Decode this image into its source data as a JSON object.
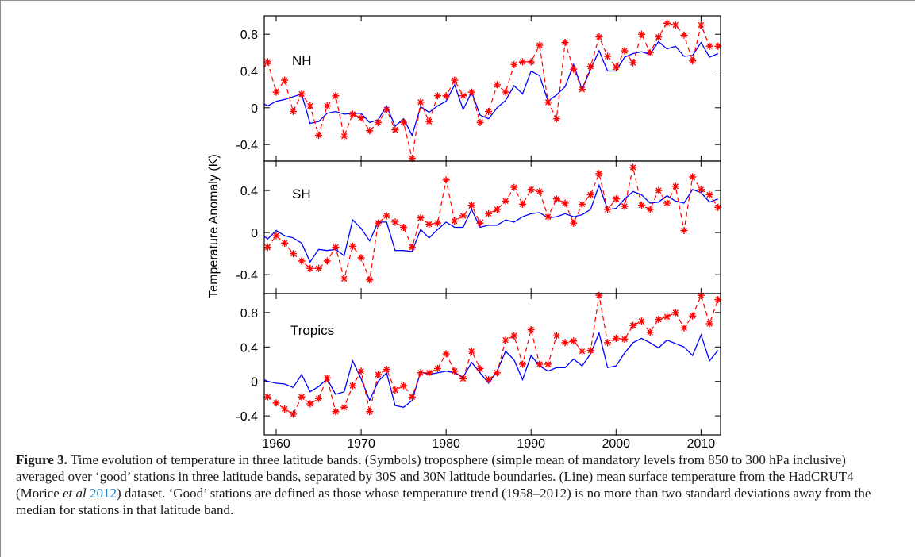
{
  "chart_data": {
    "type": "line",
    "ylabel": "Temperature Anomaly (K)",
    "xlim": [
      1958.6,
      2012.3
    ],
    "x_ticks": [
      1960,
      1970,
      1980,
      1990,
      2000,
      2010
    ],
    "x_tick_labels": [
      "1960",
      "1970",
      "1980",
      "1990",
      "2000",
      "2010"
    ],
    "panels": [
      {
        "label": "NH",
        "ylim": [
          -0.58,
          1.0
        ],
        "y_ticks": [
          -0.4,
          0,
          0.4,
          0.8
        ],
        "y_tick_labels": [
          "-0.4",
          "0",
          "0.4",
          "0.8"
        ],
        "years": [
          1958,
          1959,
          1960,
          1961,
          1962,
          1963,
          1964,
          1965,
          1966,
          1967,
          1968,
          1969,
          1970,
          1971,
          1972,
          1973,
          1974,
          1975,
          1976,
          1977,
          1978,
          1979,
          1980,
          1981,
          1982,
          1983,
          1984,
          1985,
          1986,
          1987,
          1988,
          1989,
          1990,
          1991,
          1992,
          1993,
          1994,
          1995,
          1996,
          1997,
          1998,
          1999,
          2000,
          2001,
          2002,
          2003,
          2004,
          2005,
          2006,
          2007,
          2008,
          2009,
          2010,
          2011,
          2012
        ],
        "series": [
          {
            "role": "surface",
            "style": "line",
            "values": [
              0.07,
              0.02,
              0.07,
              0.09,
              0.12,
              0.15,
              -0.17,
              -0.15,
              -0.06,
              -0.04,
              -0.07,
              -0.06,
              -0.06,
              -0.16,
              -0.13,
              0.02,
              -0.2,
              -0.12,
              -0.3,
              0.01,
              -0.05,
              0.02,
              0.07,
              0.25,
              -0.02,
              0.17,
              -0.08,
              -0.12,
              0.0,
              0.08,
              0.24,
              0.15,
              0.4,
              0.35,
              0.07,
              0.14,
              0.23,
              0.47,
              0.2,
              0.42,
              0.62,
              0.4,
              0.4,
              0.55,
              0.59,
              0.61,
              0.58,
              0.72,
              0.64,
              0.67,
              0.56,
              0.57,
              0.71,
              0.55,
              0.59
            ]
          },
          {
            "role": "troposphere",
            "style": "star-dashed",
            "values": [
              0.35,
              0.5,
              0.17,
              0.3,
              -0.04,
              0.15,
              0.02,
              -0.3,
              0.02,
              0.13,
              -0.31,
              -0.07,
              -0.11,
              -0.25,
              -0.16,
              -0.02,
              -0.24,
              -0.16,
              -0.55,
              0.06,
              -0.15,
              0.13,
              0.13,
              0.3,
              0.13,
              0.17,
              -0.16,
              -0.04,
              0.25,
              0.17,
              0.47,
              0.5,
              0.5,
              0.68,
              0.06,
              -0.12,
              0.71,
              0.42,
              0.2,
              0.45,
              0.77,
              0.56,
              0.44,
              0.62,
              0.49,
              0.8,
              0.6,
              0.77,
              0.92,
              0.9,
              0.79,
              0.51,
              0.9,
              0.67,
              0.67
            ]
          }
        ]
      },
      {
        "label": "SH",
        "ylim": [
          -0.58,
          0.68
        ],
        "y_ticks": [
          -0.4,
          0,
          0.4
        ],
        "y_tick_labels": [
          "-0.4",
          "0",
          "0.4"
        ],
        "years": [
          1958,
          1959,
          1960,
          1961,
          1962,
          1963,
          1964,
          1965,
          1966,
          1967,
          1968,
          1969,
          1970,
          1971,
          1972,
          1973,
          1974,
          1975,
          1976,
          1977,
          1978,
          1979,
          1980,
          1981,
          1982,
          1983,
          1984,
          1985,
          1986,
          1987,
          1988,
          1989,
          1990,
          1991,
          1992,
          1993,
          1994,
          1995,
          1996,
          1997,
          1998,
          1999,
          2000,
          2001,
          2002,
          2003,
          2004,
          2005,
          2006,
          2007,
          2008,
          2009,
          2010,
          2011,
          2012
        ],
        "series": [
          {
            "role": "surface",
            "style": "line",
            "values": [
              0.0,
              -0.06,
              0.02,
              -0.03,
              -0.05,
              -0.1,
              -0.28,
              -0.16,
              -0.17,
              -0.16,
              -0.22,
              0.12,
              0.04,
              -0.08,
              0.1,
              0.1,
              -0.17,
              -0.17,
              -0.18,
              0.03,
              -0.05,
              0.03,
              0.1,
              0.05,
              0.05,
              0.22,
              0.05,
              0.07,
              0.07,
              0.12,
              0.1,
              0.15,
              0.18,
              0.19,
              0.14,
              0.15,
              0.18,
              0.15,
              0.17,
              0.22,
              0.45,
              0.22,
              0.23,
              0.32,
              0.39,
              0.36,
              0.28,
              0.29,
              0.35,
              0.3,
              0.28,
              0.41,
              0.38,
              0.29,
              0.32
            ]
          },
          {
            "role": "troposphere",
            "style": "star-dashed",
            "values": [
              -0.13,
              -0.14,
              -0.03,
              -0.1,
              -0.2,
              -0.27,
              -0.34,
              -0.34,
              -0.27,
              -0.14,
              -0.44,
              -0.13,
              -0.24,
              -0.45,
              0.09,
              0.16,
              0.1,
              0.05,
              -0.14,
              0.14,
              0.08,
              0.09,
              0.5,
              0.11,
              0.16,
              0.26,
              0.09,
              0.18,
              0.22,
              0.3,
              0.43,
              0.27,
              0.41,
              0.39,
              0.15,
              0.32,
              0.28,
              0.09,
              0.27,
              0.36,
              0.56,
              0.22,
              0.32,
              0.25,
              0.62,
              0.26,
              0.22,
              0.4,
              0.28,
              0.44,
              0.02,
              0.53,
              0.41,
              0.36,
              0.24
            ]
          }
        ]
      },
      {
        "label": "Tropics",
        "ylim": [
          -0.62,
          1.02
        ],
        "y_ticks": [
          -0.4,
          0,
          0.4,
          0.8
        ],
        "y_tick_labels": [
          "-0.4",
          "0",
          "0.4",
          "0.8"
        ],
        "years": [
          1958,
          1959,
          1960,
          1961,
          1962,
          1963,
          1964,
          1965,
          1966,
          1967,
          1968,
          1969,
          1970,
          1971,
          1972,
          1973,
          1974,
          1975,
          1976,
          1977,
          1978,
          1979,
          1980,
          1981,
          1982,
          1983,
          1984,
          1985,
          1986,
          1987,
          1988,
          1989,
          1990,
          1991,
          1992,
          1993,
          1994,
          1995,
          1996,
          1997,
          1998,
          1999,
          2000,
          2001,
          2002,
          2003,
          2004,
          2005,
          2006,
          2007,
          2008,
          2009,
          2010,
          2011,
          2012
        ],
        "series": [
          {
            "role": "surface",
            "style": "line",
            "values": [
              0.05,
              0.0,
              -0.02,
              -0.03,
              -0.07,
              0.08,
              -0.12,
              -0.06,
              0.03,
              -0.15,
              -0.12,
              0.24,
              0.03,
              -0.22,
              0.0,
              0.1,
              -0.28,
              -0.3,
              -0.22,
              0.11,
              0.08,
              0.1,
              0.12,
              0.1,
              0.05,
              0.22,
              0.1,
              -0.02,
              0.12,
              0.35,
              0.25,
              0.02,
              0.3,
              0.18,
              0.12,
              0.16,
              0.16,
              0.26,
              0.18,
              0.32,
              0.56,
              0.16,
              0.18,
              0.33,
              0.45,
              0.5,
              0.45,
              0.39,
              0.48,
              0.44,
              0.4,
              0.3,
              0.54,
              0.24,
              0.36
            ]
          },
          {
            "role": "troposphere",
            "style": "star-dashed",
            "values": [
              -0.17,
              -0.18,
              -0.25,
              -0.32,
              -0.38,
              -0.18,
              -0.26,
              -0.2,
              0.04,
              -0.35,
              -0.3,
              -0.05,
              0.12,
              -0.35,
              0.08,
              0.14,
              -0.1,
              -0.05,
              -0.18,
              0.1,
              0.1,
              0.15,
              0.32,
              0.12,
              0.03,
              0.35,
              0.15,
              0.02,
              0.1,
              0.48,
              0.53,
              0.2,
              0.6,
              0.2,
              0.2,
              0.53,
              0.45,
              0.47,
              0.35,
              0.36,
              1.0,
              0.45,
              0.5,
              0.49,
              0.65,
              0.7,
              0.57,
              0.72,
              0.75,
              0.8,
              0.62,
              0.76,
              1.0,
              0.67,
              0.95
            ]
          }
        ]
      }
    ]
  },
  "caption": {
    "label": "Figure 3.",
    "text_1": " Time evolution of temperature in three latitude bands. (Symbols) troposphere (simple mean of mandatory levels from 850 to 300 hPa inclusive) averaged over ‘good’ stations in three latitude bands, separated by 30S and 30N latitude boundaries. (Line) mean surface temperature from the HadCRUT4 (Morice ",
    "etal": "et al",
    "year": "2012",
    "text_2": ") dataset. ‘Good’ stations are defined as those whose temperature trend (1958–2012) is no more than two standard deviations away from the median for stations in that latitude band."
  },
  "colors": {
    "surface": "#0000ff",
    "troposphere": "#ff0000",
    "axis": "#000000",
    "cite": "#1f7fbf"
  }
}
